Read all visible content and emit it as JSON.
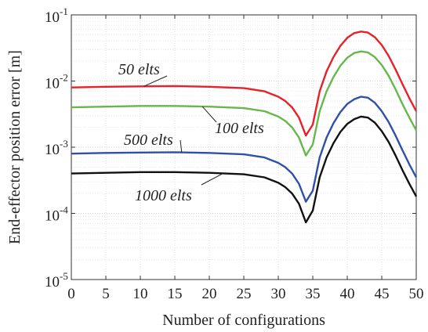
{
  "chart_data": {
    "type": "line",
    "xlabel": "Number of configurations",
    "ylabel": "End-effector position error [m]",
    "yscale": "log",
    "xlim": [
      0,
      50
    ],
    "ylim": [
      1e-05,
      0.1
    ],
    "grid": true,
    "x_ticks": [
      "0",
      "5",
      "10",
      "15",
      "20",
      "25",
      "30",
      "35",
      "40",
      "45",
      "50"
    ],
    "y_ticks": [
      {
        "base": "10",
        "exp": "-5",
        "value": 1e-05
      },
      {
        "base": "10",
        "exp": "-4",
        "value": 0.0001
      },
      {
        "base": "10",
        "exp": "-3",
        "value": 0.001
      },
      {
        "base": "10",
        "exp": "-2",
        "value": 0.01
      },
      {
        "base": "10",
        "exp": "-1",
        "value": 0.1
      }
    ],
    "x": [
      0,
      5,
      10,
      15,
      20,
      25,
      28,
      30,
      31,
      32,
      33,
      34,
      35,
      36,
      37,
      38,
      39,
      40,
      41,
      42,
      43,
      44,
      45,
      46,
      47,
      48,
      49,
      50
    ],
    "series": [
      {
        "name": "50 elts",
        "color": "#e8202a",
        "values": [
          0.008,
          0.0082,
          0.0083,
          0.0084,
          0.0082,
          0.0078,
          0.007,
          0.0058,
          0.005,
          0.004,
          0.0028,
          0.0015,
          0.0022,
          0.007,
          0.014,
          0.023,
          0.034,
          0.045,
          0.053,
          0.056,
          0.054,
          0.046,
          0.035,
          0.024,
          0.015,
          0.009,
          0.0055,
          0.0035
        ]
      },
      {
        "name": "100 elts",
        "color": "#66b84a",
        "values": [
          0.004,
          0.0041,
          0.0042,
          0.0042,
          0.0041,
          0.0039,
          0.0035,
          0.0029,
          0.0025,
          0.002,
          0.0014,
          0.00075,
          0.0011,
          0.0035,
          0.007,
          0.0115,
          0.017,
          0.0225,
          0.0265,
          0.028,
          0.027,
          0.023,
          0.0175,
          0.012,
          0.0075,
          0.0045,
          0.0028,
          0.0018
        ]
      },
      {
        "name": "500 elts",
        "color": "#3050a8",
        "values": [
          0.0008,
          0.00082,
          0.00083,
          0.00084,
          0.00082,
          0.00078,
          0.0007,
          0.00058,
          0.0005,
          0.0004,
          0.00028,
          0.00015,
          0.00022,
          0.0007,
          0.0014,
          0.0023,
          0.0034,
          0.0045,
          0.0053,
          0.0058,
          0.0056,
          0.0047,
          0.0035,
          0.0024,
          0.0015,
          0.0009,
          0.00055,
          0.00035
        ]
      },
      {
        "name": "1000 elts",
        "color": "#111111",
        "values": [
          0.0004,
          0.00041,
          0.00042,
          0.00042,
          0.00041,
          0.00039,
          0.00035,
          0.00029,
          0.00025,
          0.0002,
          0.00014,
          7.3e-05,
          0.00011,
          0.00035,
          0.0007,
          0.00115,
          0.0017,
          0.00225,
          0.00265,
          0.0029,
          0.0028,
          0.00235,
          0.00175,
          0.0012,
          0.00075,
          0.00045,
          0.00028,
          0.00018
        ]
      }
    ],
    "annotations": [
      {
        "text": "50 elts",
        "series": "50 elts",
        "x": 10.5
      },
      {
        "text": "100 elts",
        "series": "100 elts",
        "x": 19
      },
      {
        "text": "500 elts",
        "series": "500 elts",
        "x": 16
      },
      {
        "text": "1000 elts",
        "series": "1000 elts",
        "x": 22
      }
    ]
  }
}
